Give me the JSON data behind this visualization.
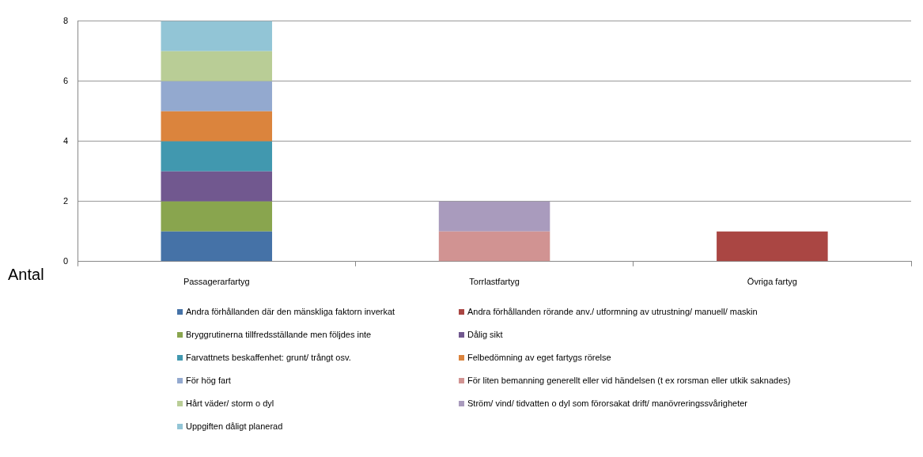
{
  "chart_data": {
    "type": "bar",
    "stacked": true,
    "ylabel": "Antal",
    "categories": [
      "Passagerarfartyg",
      "Torrlastfartyg",
      "Övriga fartyg"
    ],
    "ylim": [
      0,
      8
    ],
    "yticks": [
      0,
      2,
      4,
      6,
      8
    ],
    "grid": "y",
    "legend": "bottom",
    "series": [
      {
        "name": "Andra förhållanden där den mänskliga faktorn inverkat",
        "color": "#4572a7",
        "values": [
          1,
          0,
          0
        ]
      },
      {
        "name": "Andra förhållanden rörande anv./ utformning av utrustning/ manuell/ maskin",
        "color": "#aa4643",
        "values": [
          0,
          0,
          1
        ]
      },
      {
        "name": "Bryggrutinerna tillfredsställande men följdes inte",
        "color": "#89a54e",
        "values": [
          1,
          0,
          0
        ]
      },
      {
        "name": "Dålig sikt",
        "color": "#71588f",
        "values": [
          1,
          0,
          0
        ]
      },
      {
        "name": "Farvattnets beskaffenhet: grunt/ trångt osv.",
        "color": "#4198af",
        "values": [
          1,
          0,
          0
        ]
      },
      {
        "name": "Felbedömning av eget fartygs rörelse",
        "color": "#db843d",
        "values": [
          1,
          0,
          0
        ]
      },
      {
        "name": "För hög fart",
        "color": "#93a9cf",
        "values": [
          1,
          0,
          0
        ]
      },
      {
        "name": "För liten bemanning generellt eller vid händelsen (t ex rorsman eller utkik saknades)",
        "color": "#d19392",
        "values": [
          0,
          1,
          0
        ]
      },
      {
        "name": "Hårt väder/ storm o dyl",
        "color": "#b9cd96",
        "values": [
          1,
          0,
          0
        ]
      },
      {
        "name": "Ström/ vind/ tidvatten o dyl som förorsakat drift/ manövreringssvårigheter",
        "color": "#a99bbd",
        "values": [
          0,
          1,
          0
        ]
      },
      {
        "name": "Uppgiften dåligt planerad",
        "color": "#92c5d6",
        "values": [
          1,
          0,
          0
        ]
      }
    ]
  }
}
